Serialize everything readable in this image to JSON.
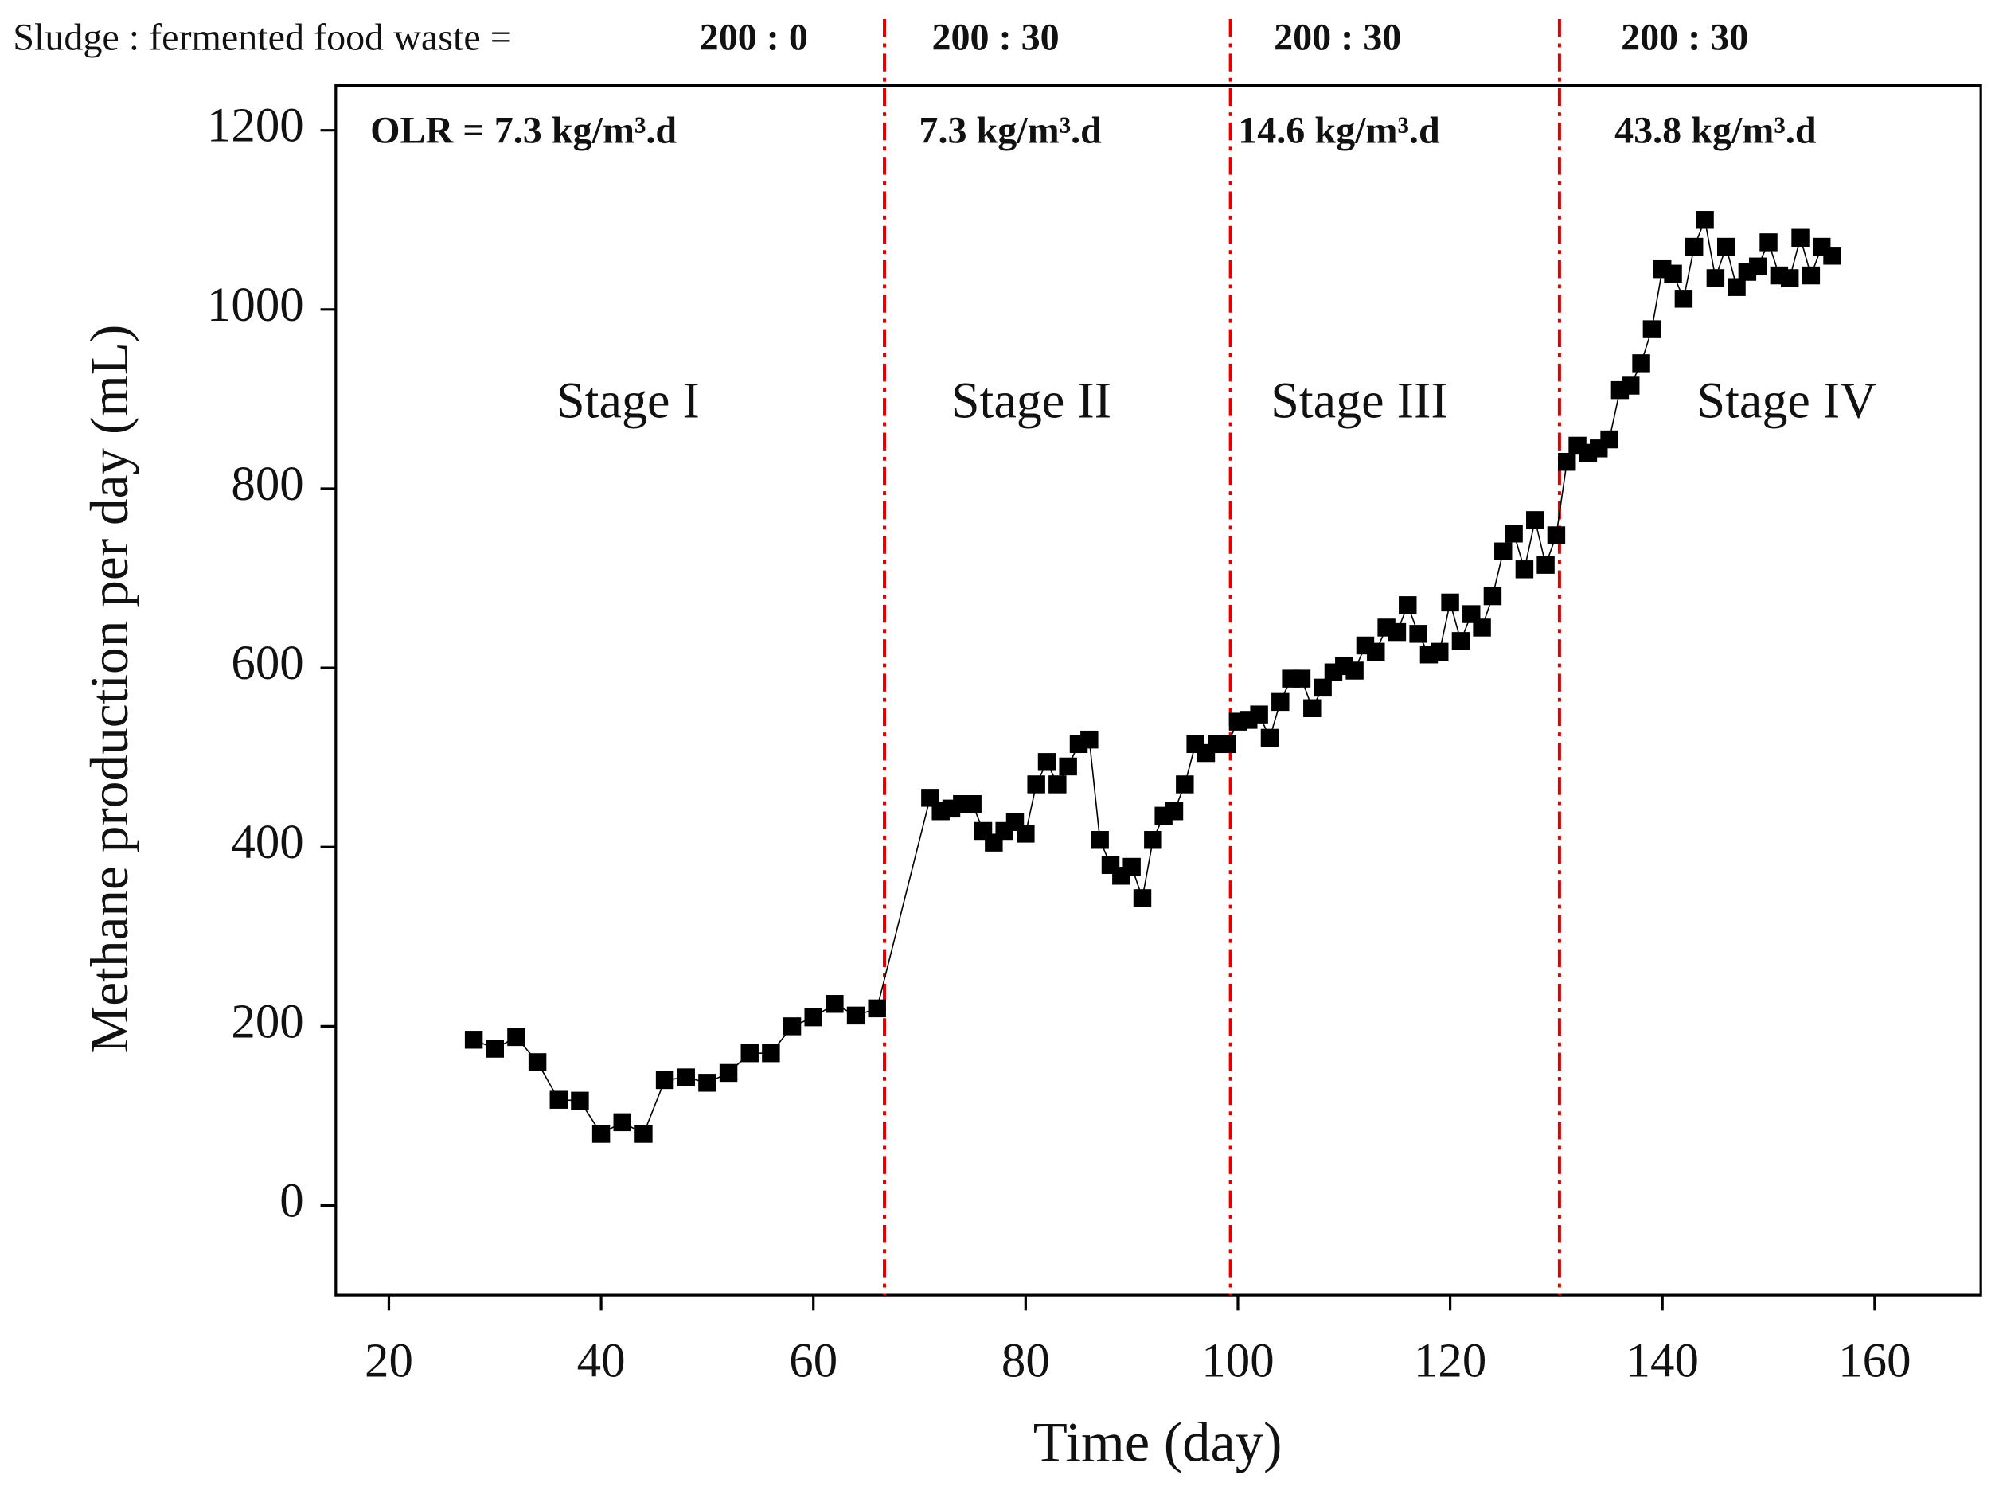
{
  "chart_data": {
    "type": "line",
    "ratio_label": "Sludge : fermented food waste =",
    "ratios": [
      "200 : 0",
      "200 :  30",
      "200 :  30",
      "200 :  30"
    ],
    "olr_labels": [
      "OLR = 7.3 kg/m³.d",
      "7.3 kg/m³.d",
      "14.6 kg/m³.d",
      "43.8 kg/m³.d"
    ],
    "stage_labels": [
      "Stage I",
      "Stage II",
      "Stage III",
      "Stage IV"
    ],
    "dividers": [
      66.7,
      99.3,
      130.3
    ],
    "divider_color": "#e00000",
    "xlabel": "Time (day)",
    "ylabel": "Methane production per day (mL)",
    "xlim": [
      15,
      170
    ],
    "ylim": [
      -100,
      1250
    ],
    "xticks": [
      20,
      40,
      60,
      80,
      100,
      120,
      140,
      160
    ],
    "yticks": [
      0,
      200,
      400,
      600,
      800,
      1000,
      1200
    ],
    "series": [
      {
        "color": "#000000",
        "x": [
          28,
          30,
          32,
          34,
          36,
          38,
          40,
          42,
          44,
          46,
          48,
          50,
          52,
          54,
          56,
          58,
          60,
          62,
          64,
          66,
          71,
          72,
          73,
          74,
          75,
          76,
          77,
          78,
          79,
          80,
          81,
          82,
          83,
          84,
          85,
          86,
          87,
          88,
          89,
          90,
          91,
          92,
          93,
          94,
          95,
          96,
          97,
          98,
          99,
          100,
          101,
          102,
          103,
          104,
          105,
          106,
          107,
          108,
          109,
          110,
          111,
          112,
          113,
          114,
          115,
          116,
          117,
          118,
          119,
          120,
          121,
          122,
          123,
          124,
          125,
          126,
          127,
          128,
          129,
          130,
          131,
          132,
          133,
          134,
          135,
          136,
          137,
          138,
          139,
          140,
          141,
          142,
          143,
          144,
          145,
          146,
          147,
          148,
          149,
          150,
          151,
          152,
          153,
          154,
          155,
          156
        ],
        "values": [
          185,
          175,
          188,
          160,
          118,
          117,
          80,
          93,
          80,
          140,
          143,
          137,
          148,
          170,
          170,
          200,
          210,
          225,
          212,
          220,
          455,
          440,
          443,
          448,
          448,
          418,
          405,
          418,
          428,
          415,
          470,
          495,
          470,
          490,
          515,
          520,
          408,
          380,
          368,
          378,
          343,
          408,
          435,
          440,
          470,
          515,
          505,
          515,
          515,
          540,
          542,
          548,
          522,
          562,
          588,
          588,
          555,
          578,
          595,
          602,
          597,
          625,
          618,
          645,
          640,
          670,
          638,
          615,
          618,
          673,
          630,
          660,
          645,
          680,
          730,
          750,
          710,
          765,
          715,
          748,
          830,
          848,
          840,
          845,
          855,
          910,
          915,
          940,
          978,
          1045,
          1040,
          1012,
          1070,
          1100,
          1035,
          1070,
          1025,
          1042,
          1048,
          1075,
          1038,
          1035,
          1080,
          1038,
          1070,
          1060
        ]
      }
    ]
  }
}
